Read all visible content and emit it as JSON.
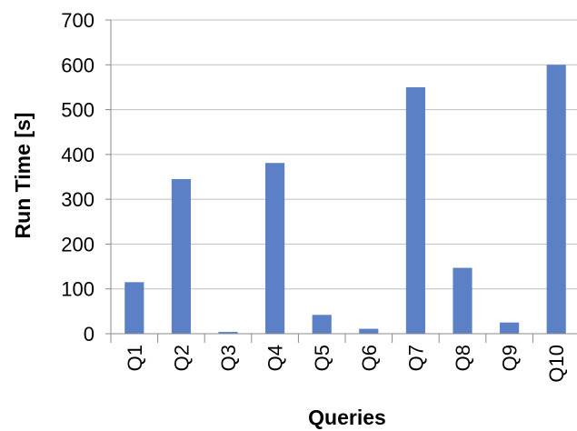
{
  "chart_data": {
    "type": "bar",
    "categories": [
      "Q1",
      "Q2",
      "Q3",
      "Q4",
      "Q5",
      "Q6",
      "Q7",
      "Q8",
      "Q9",
      "Q10"
    ],
    "series": [
      {
        "values": [
          115,
          345,
          4,
          381,
          42,
          11,
          550,
          147,
          25,
          600
        ]
      }
    ],
    "title": "",
    "xlabel": "Queries",
    "ylabel": "Run Time [s]",
    "ylim": [
      0,
      700
    ],
    "yticks": [
      "0",
      "100",
      "200",
      "300",
      "400",
      "500",
      "600",
      "700"
    ],
    "grid": true,
    "legend": "none",
    "bar_color": "#5b80c6"
  }
}
